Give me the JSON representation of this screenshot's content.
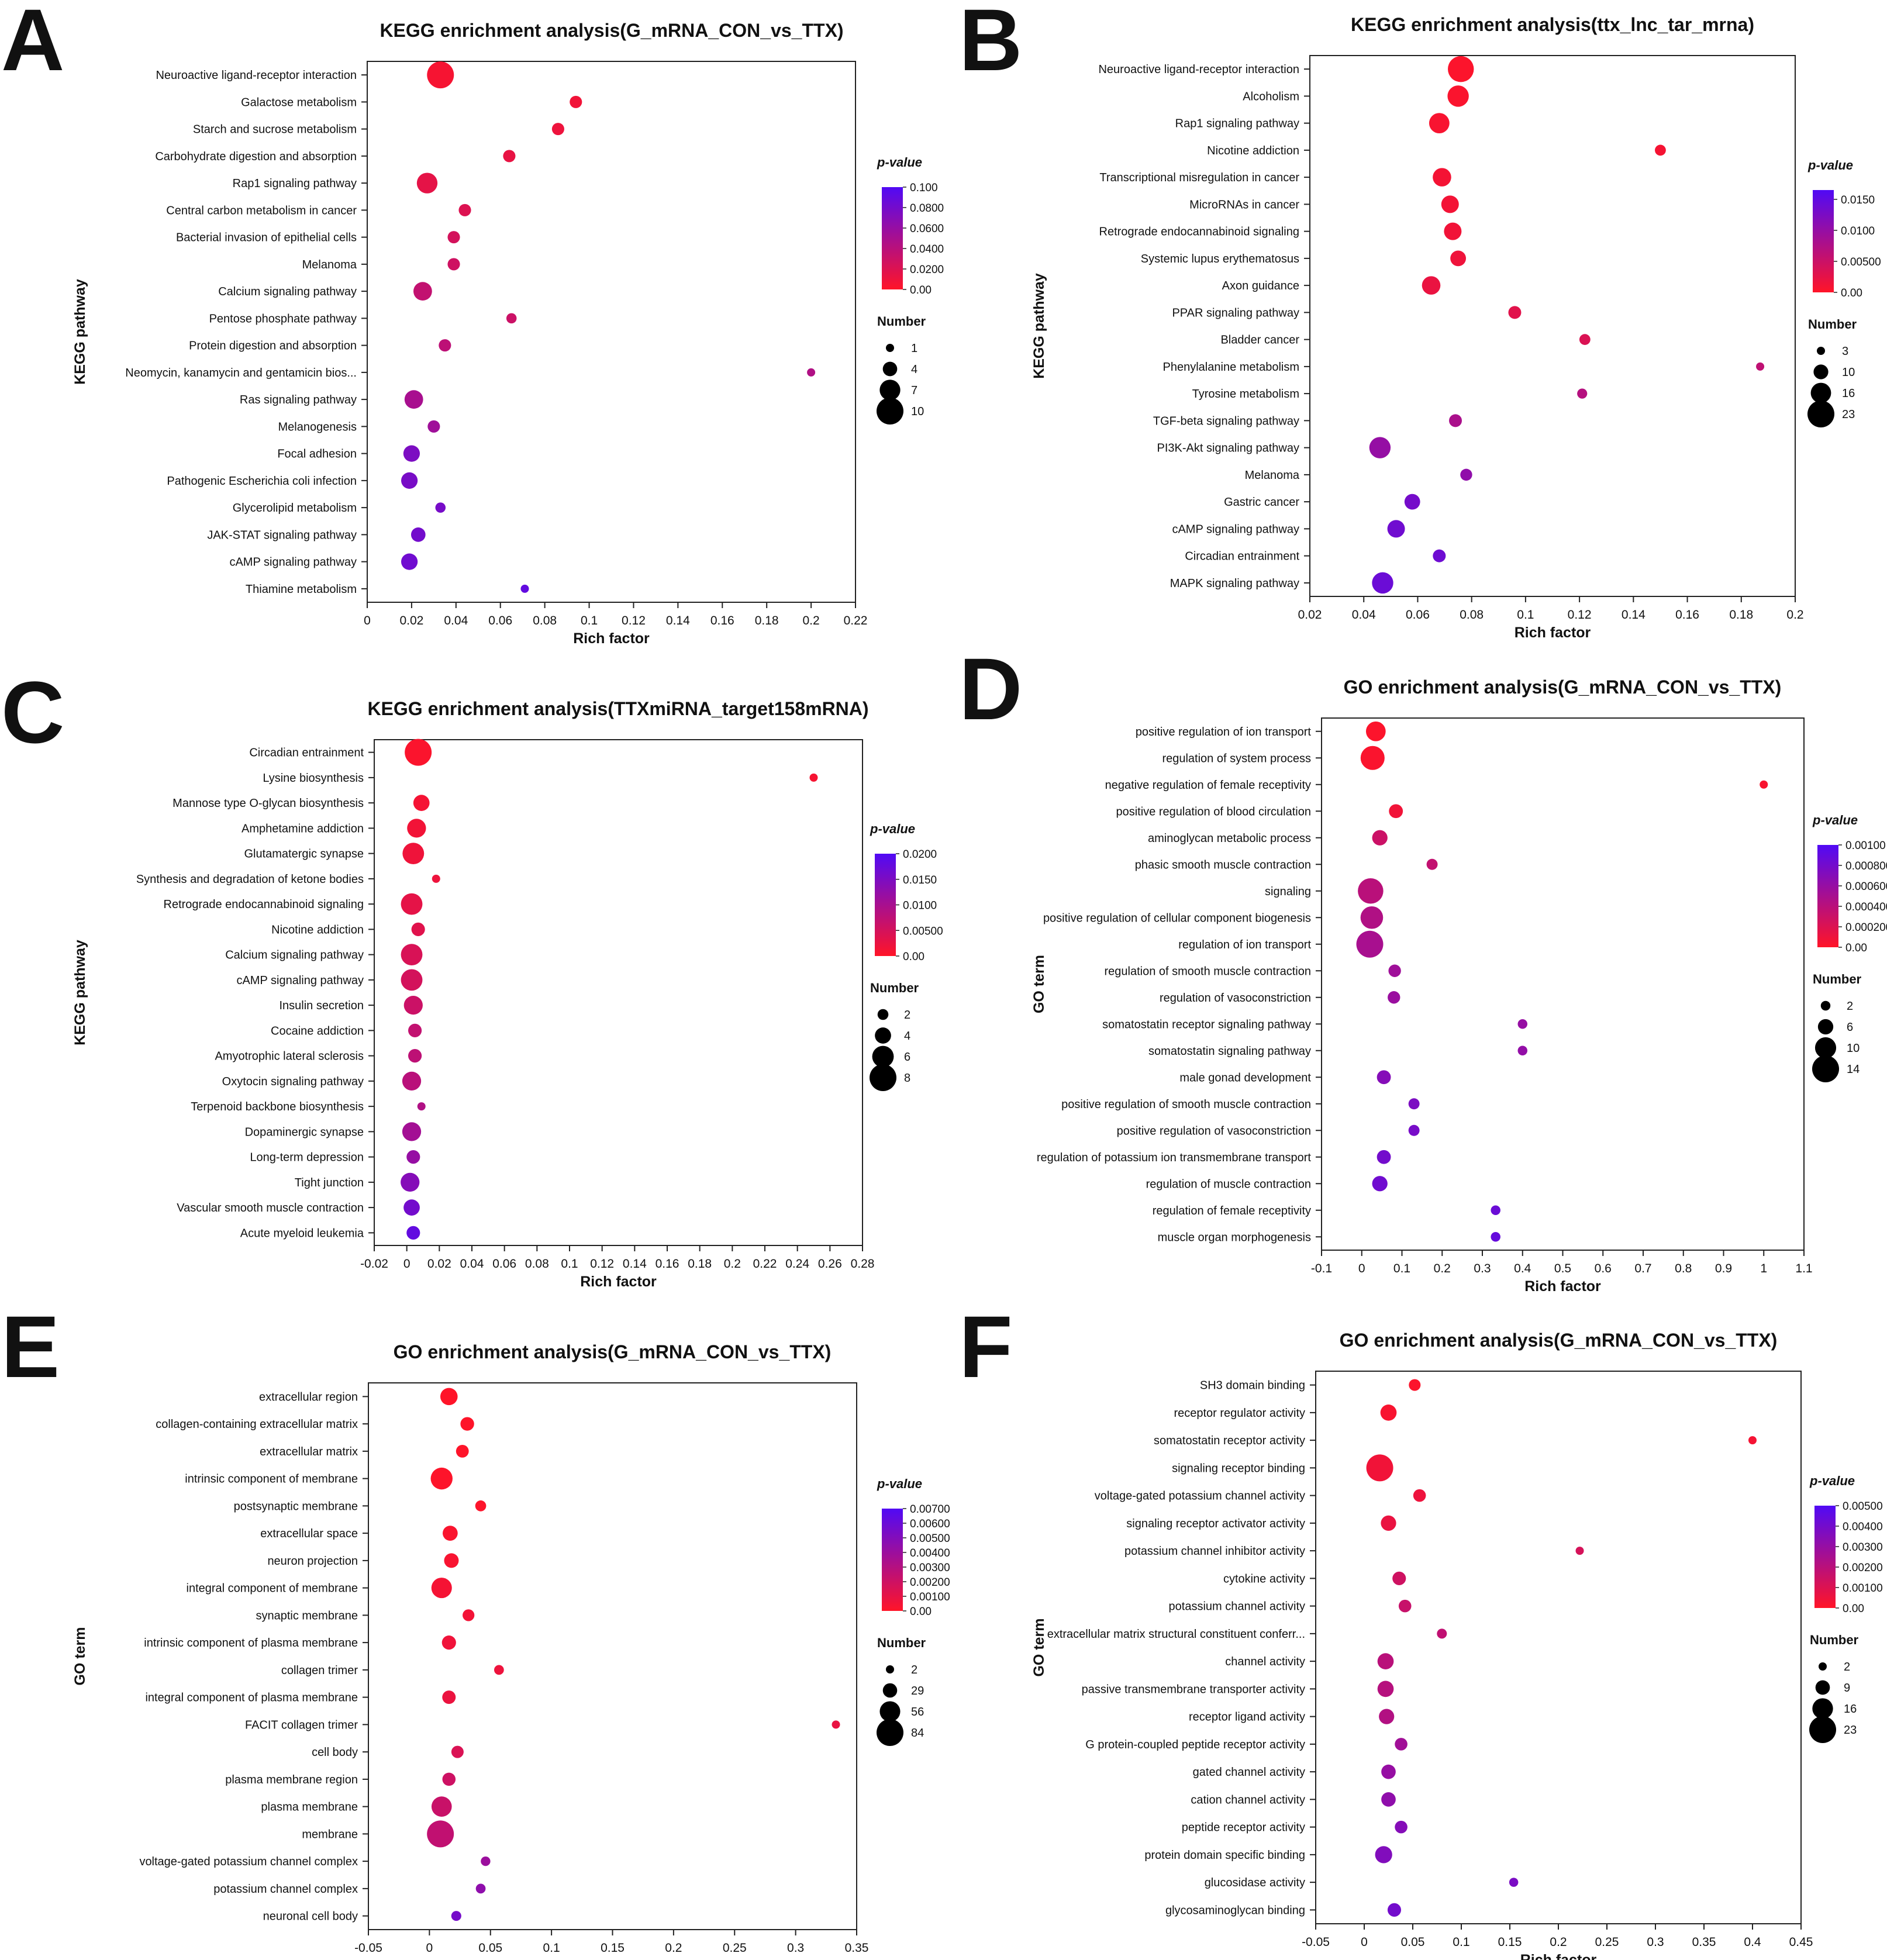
{
  "chart_data": [
    {
      "panel": "A",
      "type": "scatter",
      "title": "KEGG enrichment analysis(G_mRNA_CON_vs_TTX)",
      "xlabel": "Rich factor",
      "ylabel": "KEGG pathway",
      "xlim": [
        0,
        0.22
      ],
      "xticks": [
        0,
        0.02,
        0.04,
        0.06,
        0.08,
        0.1,
        0.12,
        0.14,
        0.16,
        0.18,
        0.2,
        0.22
      ],
      "color_legend": {
        "title": "p-value",
        "min": 0,
        "max": 0.1,
        "ticks": [
          "0.100",
          "0.0800",
          "0.0600",
          "0.0400",
          "0.0200",
          "0.00"
        ],
        "tick_values": [
          0.1,
          0.08,
          0.06,
          0.04,
          0.02,
          0
        ]
      },
      "size_legend": {
        "title": "Number",
        "values": [
          1,
          4,
          7,
          10
        ]
      },
      "size_range": [
        1,
        10
      ],
      "terms": [
        "Neuroactive ligand-receptor interaction",
        "Galactose metabolism",
        "Starch and sucrose metabolism",
        "Carbohydrate digestion and absorption",
        "Rap1 signaling pathway",
        "Central carbon metabolism in cancer",
        "Bacterial invasion of epithelial cells",
        "Melanoma",
        "Calcium signaling pathway",
        "Pentose phosphate pathway",
        "Protein digestion and absorption",
        "Neomycin, kanamycin and gentamicin bios...",
        "Ras signaling pathway",
        "Melanogenesis",
        "Focal adhesion",
        "Pathogenic Escherichia coli infection",
        "Glycerolipid metabolism",
        "JAK-STAT signaling pathway",
        "cAMP signaling pathway",
        "Thiamine metabolism"
      ],
      "x": [
        0.033,
        0.094,
        0.086,
        0.064,
        0.027,
        0.044,
        0.039,
        0.039,
        0.025,
        0.065,
        0.035,
        0.2,
        0.021,
        0.03,
        0.02,
        0.019,
        0.033,
        0.023,
        0.019,
        0.071
      ],
      "pvalue": [
        0.005,
        0.008,
        0.01,
        0.013,
        0.015,
        0.02,
        0.025,
        0.028,
        0.035,
        0.03,
        0.038,
        0.045,
        0.05,
        0.055,
        0.075,
        0.077,
        0.078,
        0.08,
        0.082,
        0.09
      ],
      "count": [
        10,
        3,
        3,
        3,
        7,
        3,
        3,
        3,
        6,
        2,
        3,
        1,
        6,
        3,
        5,
        5,
        2,
        4,
        5,
        1
      ]
    },
    {
      "panel": "B",
      "type": "scatter",
      "title": "KEGG enrichment analysis(ttx_lnc_tar_mrna)",
      "xlabel": "Rich factor",
      "ylabel": "KEGG pathway",
      "xlim": [
        0.02,
        0.2
      ],
      "xticks": [
        0.02,
        0.04,
        0.06,
        0.08,
        0.1,
        0.12,
        0.14,
        0.16,
        0.18,
        0.2
      ],
      "color_legend": {
        "title": "p-value",
        "min": 0,
        "max": 0.0165,
        "ticks": [
          "0.0150",
          "0.0100",
          "0.00500",
          "0.00"
        ],
        "tick_values": [
          0.015,
          0.01,
          0.005,
          0
        ]
      },
      "size_legend": {
        "title": "Number",
        "values": [
          3,
          10,
          16,
          23
        ]
      },
      "size_range": [
        3,
        23
      ],
      "terms": [
        "Neuroactive ligand-receptor interaction",
        "Alcoholism",
        "Rap1 signaling pathway",
        "Nicotine addiction",
        "Transcriptional misregulation in cancer",
        "MicroRNAs in cancer",
        "Retrograde endocannabinoid signaling",
        "Systemic lupus erythematosus",
        "Axon guidance",
        "PPAR signaling pathway",
        "Bladder cancer",
        "Phenylalanine metabolism",
        "Tyrosine metabolism",
        "TGF-beta signaling pathway",
        "PI3K-Akt signaling pathway",
        "Melanoma",
        "Gastric cancer",
        "cAMP signaling pathway",
        "Circadian entrainment",
        "MAPK signaling pathway"
      ],
      "x": [
        0.076,
        0.075,
        0.068,
        0.15,
        0.069,
        0.072,
        0.073,
        0.075,
        0.065,
        0.096,
        0.122,
        0.187,
        0.121,
        0.074,
        0.046,
        0.078,
        0.058,
        0.052,
        0.068,
        0.047
      ],
      "pvalue": [
        0.0003,
        0.0005,
        0.0007,
        0.0009,
        0.001,
        0.0011,
        0.0013,
        0.0015,
        0.002,
        0.0028,
        0.0035,
        0.006,
        0.007,
        0.008,
        0.01,
        0.0105,
        0.013,
        0.0135,
        0.0137,
        0.014
      ],
      "count": [
        22,
        17,
        16,
        6,
        14,
        13,
        13,
        11,
        14,
        8,
        6,
        3,
        5,
        8,
        17,
        7,
        11,
        13,
        8,
        17
      ]
    },
    {
      "panel": "C",
      "type": "scatter",
      "title": "KEGG enrichment analysis(TTXmiRNA_target158mRNA)",
      "xlabel": "Rich factor",
      "ylabel": "KEGG pathway",
      "xlim": [
        -0.02,
        0.28
      ],
      "xticks": [
        -0.02,
        0,
        0.02,
        0.04,
        0.06,
        0.08,
        0.1,
        0.12,
        0.14,
        0.16,
        0.18,
        0.2,
        0.22,
        0.24,
        0.26,
        0.28
      ],
      "color_legend": {
        "title": "p-value",
        "min": 0,
        "max": 0.02,
        "ticks": [
          "0.0200",
          "0.0150",
          "0.0100",
          "0.00500",
          "0.00"
        ],
        "tick_values": [
          0.02,
          0.015,
          0.01,
          0.005,
          0
        ]
      },
      "size_legend": {
        "title": "Number",
        "values": [
          2,
          4,
          6,
          8
        ]
      },
      "size_range": [
        1,
        8
      ],
      "terms": [
        "Circadian entrainment",
        "Lysine biosynthesis",
        "Mannose type O-glycan biosynthesis",
        "Amphetamine addiction",
        "Glutamatergic synapse",
        "Synthesis and degradation of ketone bodies",
        "Retrograde endocannabinoid signaling",
        "Nicotine addiction",
        "Calcium signaling pathway",
        "cAMP signaling pathway",
        "Insulin secretion",
        "Cocaine addiction",
        "Amyotrophic lateral sclerosis",
        "Oxytocin signaling pathway",
        "Terpenoid backbone biosynthesis",
        "Dopaminergic synapse",
        "Long-term depression",
        "Tight junction",
        "Vascular smooth muscle contraction",
        "Acute myeloid leukemia"
      ],
      "x": [
        0.007,
        0.25,
        0.009,
        0.006,
        0.004,
        0.018,
        0.003,
        0.007,
        0.003,
        0.003,
        0.004,
        0.005,
        0.005,
        0.003,
        0.009,
        0.003,
        0.004,
        0.002,
        0.003,
        0.004
      ],
      "pvalue": [
        0.0005,
        0.001,
        0.0012,
        0.0015,
        0.0018,
        0.002,
        0.003,
        0.0035,
        0.0045,
        0.005,
        0.006,
        0.007,
        0.0075,
        0.008,
        0.009,
        0.0105,
        0.012,
        0.014,
        0.016,
        0.018
      ],
      "count": [
        8,
        1,
        4,
        5,
        6,
        1,
        6,
        3,
        6,
        6,
        5,
        3,
        3,
        5,
        1,
        5,
        3,
        5,
        4,
        3
      ]
    },
    {
      "panel": "D",
      "type": "scatter",
      "title": "GO enrichment analysis(G_mRNA_CON_vs_TTX)",
      "xlabel": "Rich factor",
      "ylabel": "GO term",
      "xlim": [
        -0.1,
        1.1
      ],
      "xticks": [
        -0.1,
        0,
        0.1,
        0.2,
        0.3,
        0.4,
        0.5,
        0.6,
        0.7,
        0.8,
        0.9,
        1,
        1.1
      ],
      "color_legend": {
        "title": "p-value",
        "min": 0,
        "max": 0.001,
        "ticks": [
          "0.00100",
          "0.000800",
          "0.000600",
          "0.000400",
          "0.000200",
          "0.00"
        ],
        "tick_values": [
          0.001,
          0.0008,
          0.0006,
          0.0004,
          0.0002,
          0
        ]
      },
      "size_legend": {
        "title": "Number",
        "values": [
          2,
          6,
          10,
          14
        ]
      },
      "size_range": [
        1,
        14
      ],
      "terms": [
        "positive regulation of ion transport",
        "regulation of system process",
        "negative regulation of female receptivity",
        "positive regulation of blood circulation",
        "aminoglycan metabolic process",
        "phasic smooth muscle contraction",
        "signaling",
        "positive regulation of cellular component biogenesis",
        "regulation of ion transport",
        "regulation of smooth muscle contraction",
        "regulation of vasoconstriction",
        "somatostatin receptor signaling pathway",
        "somatostatin signaling pathway",
        "male gonad development",
        "positive regulation of smooth muscle contraction",
        "positive regulation of vasoconstriction",
        "regulation of potassium ion transmembrane transport",
        "regulation of muscle contraction",
        "regulation of female receptivity",
        "muscle organ morphogenesis"
      ],
      "x": [
        0.035,
        0.027,
        1.0,
        0.085,
        0.045,
        0.175,
        0.022,
        0.025,
        0.02,
        0.082,
        0.08,
        0.4,
        0.4,
        0.055,
        0.13,
        0.13,
        0.055,
        0.045,
        0.333,
        0.333
      ],
      "pvalue": [
        2e-05,
        3e-05,
        4e-05,
        8e-05,
        0.0003,
        0.00035,
        0.0004,
        0.00045,
        0.0005,
        0.00055,
        0.00058,
        0.0006,
        0.00062,
        0.0007,
        0.00075,
        0.00078,
        0.0008,
        0.00082,
        0.00085,
        0.00088
      ],
      "count": [
        9,
        12,
        1,
        5,
        6,
        3,
        13,
        11,
        14,
        4,
        4,
        2,
        2,
        5,
        3,
        3,
        5,
        6,
        2,
        2
      ]
    },
    {
      "panel": "E",
      "type": "scatter",
      "title": "GO enrichment analysis(G_mRNA_CON_vs_TTX)",
      "xlabel": "Rich factor",
      "ylabel": "GO term",
      "xlim": [
        -0.05,
        0.35
      ],
      "xticks": [
        -0.05,
        0,
        0.05,
        0.1,
        0.15,
        0.2,
        0.25,
        0.3,
        0.35
      ],
      "color_legend": {
        "title": "p-value",
        "min": 0,
        "max": 0.007,
        "ticks": [
          "0.00700",
          "0.00600",
          "0.00500",
          "0.00400",
          "0.00300",
          "0.00200",
          "0.00100",
          "0.00"
        ],
        "tick_values": [
          0.007,
          0.006,
          0.005,
          0.004,
          0.003,
          0.002,
          0.001,
          0
        ]
      },
      "size_legend": {
        "title": "Number",
        "values": [
          2,
          29,
          56,
          84
        ]
      },
      "size_range": [
        2,
        84
      ],
      "terms": [
        "extracellular region",
        "collagen-containing extracellular matrix",
        "extracellular matrix",
        "intrinsic component of membrane",
        "postsynaptic membrane",
        "extracellular space",
        "neuron projection",
        "integral component of membrane",
        "synaptic membrane",
        "intrinsic component of plasma membrane",
        "collagen trimer",
        "integral component of plasma membrane",
        "FACIT collagen trimer",
        "cell body",
        "plasma membrane region",
        "plasma membrane",
        "membrane",
        "voltage-gated potassium channel complex",
        "potassium channel complex",
        "neuronal cell body"
      ],
      "x": [
        0.016,
        0.031,
        0.027,
        0.01,
        0.042,
        0.017,
        0.018,
        0.01,
        0.032,
        0.016,
        0.057,
        0.016,
        0.333,
        0.023,
        0.016,
        0.01,
        0.009,
        0.046,
        0.042,
        0.022
      ],
      "pvalue": [
        2e-05,
        4e-05,
        6e-05,
        8e-05,
        0.0001,
        0.0002,
        0.0003,
        0.0004,
        0.0005,
        0.0006,
        0.0007,
        0.0008,
        0.0009,
        0.0015,
        0.002,
        0.0022,
        0.0025,
        0.004,
        0.0045,
        0.0055
      ],
      "count": [
        42,
        26,
        22,
        62,
        14,
        32,
        30,
        56,
        18,
        28,
        9,
        25,
        2,
        20,
        24,
        55,
        84,
        8,
        9,
        10
      ]
    },
    {
      "panel": "F",
      "type": "scatter",
      "title": "GO enrichment analysis(G_mRNA_CON_vs_TTX)",
      "xlabel": "Rich factor",
      "ylabel": "GO term",
      "xlim": [
        -0.05,
        0.45
      ],
      "xticks": [
        -0.05,
        0,
        0.05,
        0.1,
        0.15,
        0.2,
        0.25,
        0.3,
        0.35,
        0.4,
        0.45
      ],
      "color_legend": {
        "title": "p-value",
        "min": 0,
        "max": 0.005,
        "ticks": [
          "0.00500",
          "0.00400",
          "0.00300",
          "0.00200",
          "0.00100",
          "0.00"
        ],
        "tick_values": [
          0.005,
          0.004,
          0.003,
          0.002,
          0.001,
          0
        ]
      },
      "size_legend": {
        "title": "Number",
        "values": [
          2,
          9,
          16,
          23
        ]
      },
      "size_range": [
        2,
        23
      ],
      "terms": [
        "SH3 domain binding",
        "receptor regulator activity",
        "somatostatin receptor activity",
        "signaling receptor binding",
        "voltage-gated potassium channel activity",
        "signaling receptor activator activity",
        "potassium channel inhibitor activity",
        "cytokine activity",
        "potassium channel activity",
        "extracellular matrix structural constituent conferr...",
        "channel activity",
        "passive transmembrane transporter activity",
        "receptor ligand activity",
        "G protein-coupled peptide receptor activity",
        "gated channel activity",
        "cation channel activity",
        "peptide receptor activity",
        "protein domain specific binding",
        "glucosidase activity",
        "glycosaminoglycan binding"
      ],
      "x": [
        0.052,
        0.025,
        0.4,
        0.016,
        0.057,
        0.025,
        0.222,
        0.036,
        0.042,
        0.08,
        0.022,
        0.022,
        0.023,
        0.038,
        0.025,
        0.025,
        0.038,
        0.02,
        0.154,
        0.031
      ],
      "pvalue": [
        0.0001,
        0.0002,
        0.0003,
        0.0004,
        0.0005,
        0.0006,
        0.0012,
        0.0014,
        0.0016,
        0.0018,
        0.002,
        0.0021,
        0.0022,
        0.0027,
        0.003,
        0.0032,
        0.0035,
        0.0036,
        0.0038,
        0.004
      ],
      "count": [
        6,
        11,
        2,
        23,
        7,
        10,
        2,
        8,
        7,
        4,
        11,
        11,
        10,
        7,
        9,
        9,
        7,
        12,
        3,
        8
      ]
    }
  ]
}
